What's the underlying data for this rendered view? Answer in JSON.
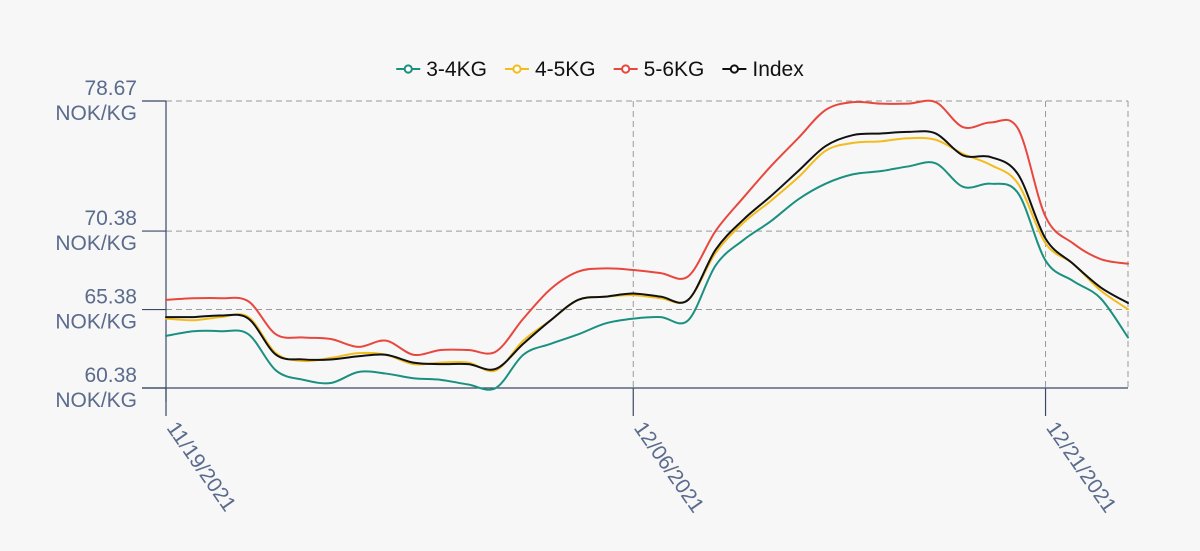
{
  "colors": {
    "background": "#f7f7f7",
    "grid": "#9a9a9a",
    "axis": "#3a4a66",
    "tick_text": "#5a6b8c"
  },
  "chart_data": {
    "type": "line",
    "title": "",
    "xlabel": "",
    "ylabel": "",
    "grid": true,
    "legend_position": "top-center",
    "xlim": [
      "2021-11-19",
      "2021-12-24"
    ],
    "ylim": [
      60.38,
      78.67
    ],
    "y_ticks": [
      {
        "value": 60.38,
        "label": "60.38",
        "unit": "NOK/KG"
      },
      {
        "value": 65.38,
        "label": "65.38",
        "unit": "NOK/KG"
      },
      {
        "value": 70.38,
        "label": "70.38",
        "unit": "NOK/KG"
      },
      {
        "value": 78.67,
        "label": "78.67",
        "unit": "NOK/KG"
      }
    ],
    "x_ticks": [
      {
        "date": "2021-11-19",
        "label": "11/19/2021"
      },
      {
        "date": "2021-12-06",
        "label": "12/06/2021"
      },
      {
        "date": "2021-12-21",
        "label": "12/21/2021"
      }
    ],
    "series": [
      {
        "name": "3-4KG",
        "color": "#1a9080",
        "points": [
          [
            "2021-11-19",
            63.7
          ],
          [
            "2021-11-20",
            64.0
          ],
          [
            "2021-11-21",
            64.0
          ],
          [
            "2021-11-22",
            63.8
          ],
          [
            "2021-11-23",
            61.5
          ],
          [
            "2021-11-24",
            60.9
          ],
          [
            "2021-11-25",
            60.7
          ],
          [
            "2021-11-26",
            61.4
          ],
          [
            "2021-11-27",
            61.3
          ],
          [
            "2021-11-28",
            61.0
          ],
          [
            "2021-11-29",
            60.9
          ],
          [
            "2021-11-30",
            60.6
          ],
          [
            "2021-12-01",
            60.38
          ],
          [
            "2021-12-02",
            62.5
          ],
          [
            "2021-12-03",
            63.2
          ],
          [
            "2021-12-04",
            63.8
          ],
          [
            "2021-12-05",
            64.5
          ],
          [
            "2021-12-06",
            64.8
          ],
          [
            "2021-12-07",
            64.9
          ],
          [
            "2021-12-08",
            64.7
          ],
          [
            "2021-12-09",
            68.2
          ],
          [
            "2021-12-10",
            69.8
          ],
          [
            "2021-12-11",
            71.0
          ],
          [
            "2021-12-12",
            72.4
          ],
          [
            "2021-12-13",
            73.4
          ],
          [
            "2021-12-14",
            74.0
          ],
          [
            "2021-12-15",
            74.2
          ],
          [
            "2021-12-16",
            74.5
          ],
          [
            "2021-12-17",
            74.7
          ],
          [
            "2021-12-18",
            73.2
          ],
          [
            "2021-12-19",
            73.4
          ],
          [
            "2021-12-20",
            72.8
          ],
          [
            "2021-12-21",
            68.5
          ],
          [
            "2021-12-22",
            67.2
          ],
          [
            "2021-12-23",
            66.1
          ],
          [
            "2021-12-24",
            63.6
          ]
        ]
      },
      {
        "name": "4-5KG",
        "color": "#f2bd1c",
        "points": [
          [
            "2021-11-19",
            64.8
          ],
          [
            "2021-11-20",
            64.7
          ],
          [
            "2021-11-21",
            64.9
          ],
          [
            "2021-11-22",
            64.9
          ],
          [
            "2021-11-23",
            62.6
          ],
          [
            "2021-11-24",
            62.1
          ],
          [
            "2021-11-25",
            62.3
          ],
          [
            "2021-11-26",
            62.6
          ],
          [
            "2021-11-27",
            62.5
          ],
          [
            "2021-11-28",
            61.9
          ],
          [
            "2021-11-29",
            62.0
          ],
          [
            "2021-11-30",
            62.0
          ],
          [
            "2021-12-01",
            61.5
          ],
          [
            "2021-12-02",
            63.4
          ],
          [
            "2021-12-03",
            64.7
          ],
          [
            "2021-12-04",
            66.0
          ],
          [
            "2021-12-05",
            66.2
          ],
          [
            "2021-12-06",
            66.3
          ],
          [
            "2021-12-07",
            66.1
          ],
          [
            "2021-12-08",
            66.0
          ],
          [
            "2021-12-09",
            69.0
          ],
          [
            "2021-12-10",
            70.9
          ],
          [
            "2021-12-11",
            72.3
          ],
          [
            "2021-12-12",
            73.8
          ],
          [
            "2021-12-13",
            75.5
          ],
          [
            "2021-12-14",
            76.0
          ],
          [
            "2021-12-15",
            76.1
          ],
          [
            "2021-12-16",
            76.3
          ],
          [
            "2021-12-17",
            76.2
          ],
          [
            "2021-12-18",
            75.3
          ],
          [
            "2021-12-19",
            74.6
          ],
          [
            "2021-12-20",
            73.4
          ],
          [
            "2021-12-21",
            69.6
          ],
          [
            "2021-12-22",
            68.3
          ],
          [
            "2021-12-23",
            66.6
          ],
          [
            "2021-12-24",
            65.4
          ]
        ]
      },
      {
        "name": "5-6KG",
        "color": "#e8473e",
        "points": [
          [
            "2021-11-19",
            66.0
          ],
          [
            "2021-11-20",
            66.1
          ],
          [
            "2021-11-21",
            66.1
          ],
          [
            "2021-11-22",
            65.9
          ],
          [
            "2021-11-23",
            63.8
          ],
          [
            "2021-11-24",
            63.6
          ],
          [
            "2021-11-25",
            63.5
          ],
          [
            "2021-11-26",
            63.0
          ],
          [
            "2021-11-27",
            63.4
          ],
          [
            "2021-11-28",
            62.5
          ],
          [
            "2021-11-29",
            62.8
          ],
          [
            "2021-11-30",
            62.8
          ],
          [
            "2021-12-01",
            62.7
          ],
          [
            "2021-12-02",
            64.8
          ],
          [
            "2021-12-03",
            66.7
          ],
          [
            "2021-12-04",
            67.8
          ],
          [
            "2021-12-05",
            68.0
          ],
          [
            "2021-12-06",
            67.9
          ],
          [
            "2021-12-07",
            67.7
          ],
          [
            "2021-12-08",
            67.5
          ],
          [
            "2021-12-09",
            70.4
          ],
          [
            "2021-12-10",
            72.5
          ],
          [
            "2021-12-11",
            74.5
          ],
          [
            "2021-12-12",
            76.3
          ],
          [
            "2021-12-13",
            78.1
          ],
          [
            "2021-12-14",
            78.6
          ],
          [
            "2021-12-15",
            78.5
          ],
          [
            "2021-12-16",
            78.5
          ],
          [
            "2021-12-17",
            78.6
          ],
          [
            "2021-12-18",
            77.0
          ],
          [
            "2021-12-19",
            77.3
          ],
          [
            "2021-12-20",
            76.9
          ],
          [
            "2021-12-21",
            71.3
          ],
          [
            "2021-12-22",
            69.6
          ],
          [
            "2021-12-23",
            68.6
          ],
          [
            "2021-12-24",
            68.3
          ]
        ]
      },
      {
        "name": "Index",
        "color": "#111111",
        "points": [
          [
            "2021-11-19",
            64.9
          ],
          [
            "2021-11-20",
            64.9
          ],
          [
            "2021-11-21",
            65.0
          ],
          [
            "2021-11-22",
            64.8
          ],
          [
            "2021-11-23",
            62.5
          ],
          [
            "2021-11-24",
            62.2
          ],
          [
            "2021-11-25",
            62.2
          ],
          [
            "2021-11-26",
            62.4
          ],
          [
            "2021-11-27",
            62.5
          ],
          [
            "2021-11-28",
            62.0
          ],
          [
            "2021-11-29",
            61.9
          ],
          [
            "2021-11-30",
            61.9
          ],
          [
            "2021-12-01",
            61.6
          ],
          [
            "2021-12-02",
            63.2
          ],
          [
            "2021-12-03",
            64.7
          ],
          [
            "2021-12-04",
            66.0
          ],
          [
            "2021-12-05",
            66.2
          ],
          [
            "2021-12-06",
            66.4
          ],
          [
            "2021-12-07",
            66.2
          ],
          [
            "2021-12-08",
            66.0
          ],
          [
            "2021-12-09",
            69.2
          ],
          [
            "2021-12-10",
            71.1
          ],
          [
            "2021-12-11",
            72.6
          ],
          [
            "2021-12-12",
            74.2
          ],
          [
            "2021-12-13",
            75.8
          ],
          [
            "2021-12-14",
            76.5
          ],
          [
            "2021-12-15",
            76.6
          ],
          [
            "2021-12-16",
            76.7
          ],
          [
            "2021-12-17",
            76.6
          ],
          [
            "2021-12-18",
            75.2
          ],
          [
            "2021-12-19",
            75.1
          ],
          [
            "2021-12-20",
            74.0
          ],
          [
            "2021-12-21",
            69.9
          ],
          [
            "2021-12-22",
            68.3
          ],
          [
            "2021-12-23",
            66.8
          ],
          [
            "2021-12-24",
            65.8
          ]
        ]
      }
    ]
  }
}
